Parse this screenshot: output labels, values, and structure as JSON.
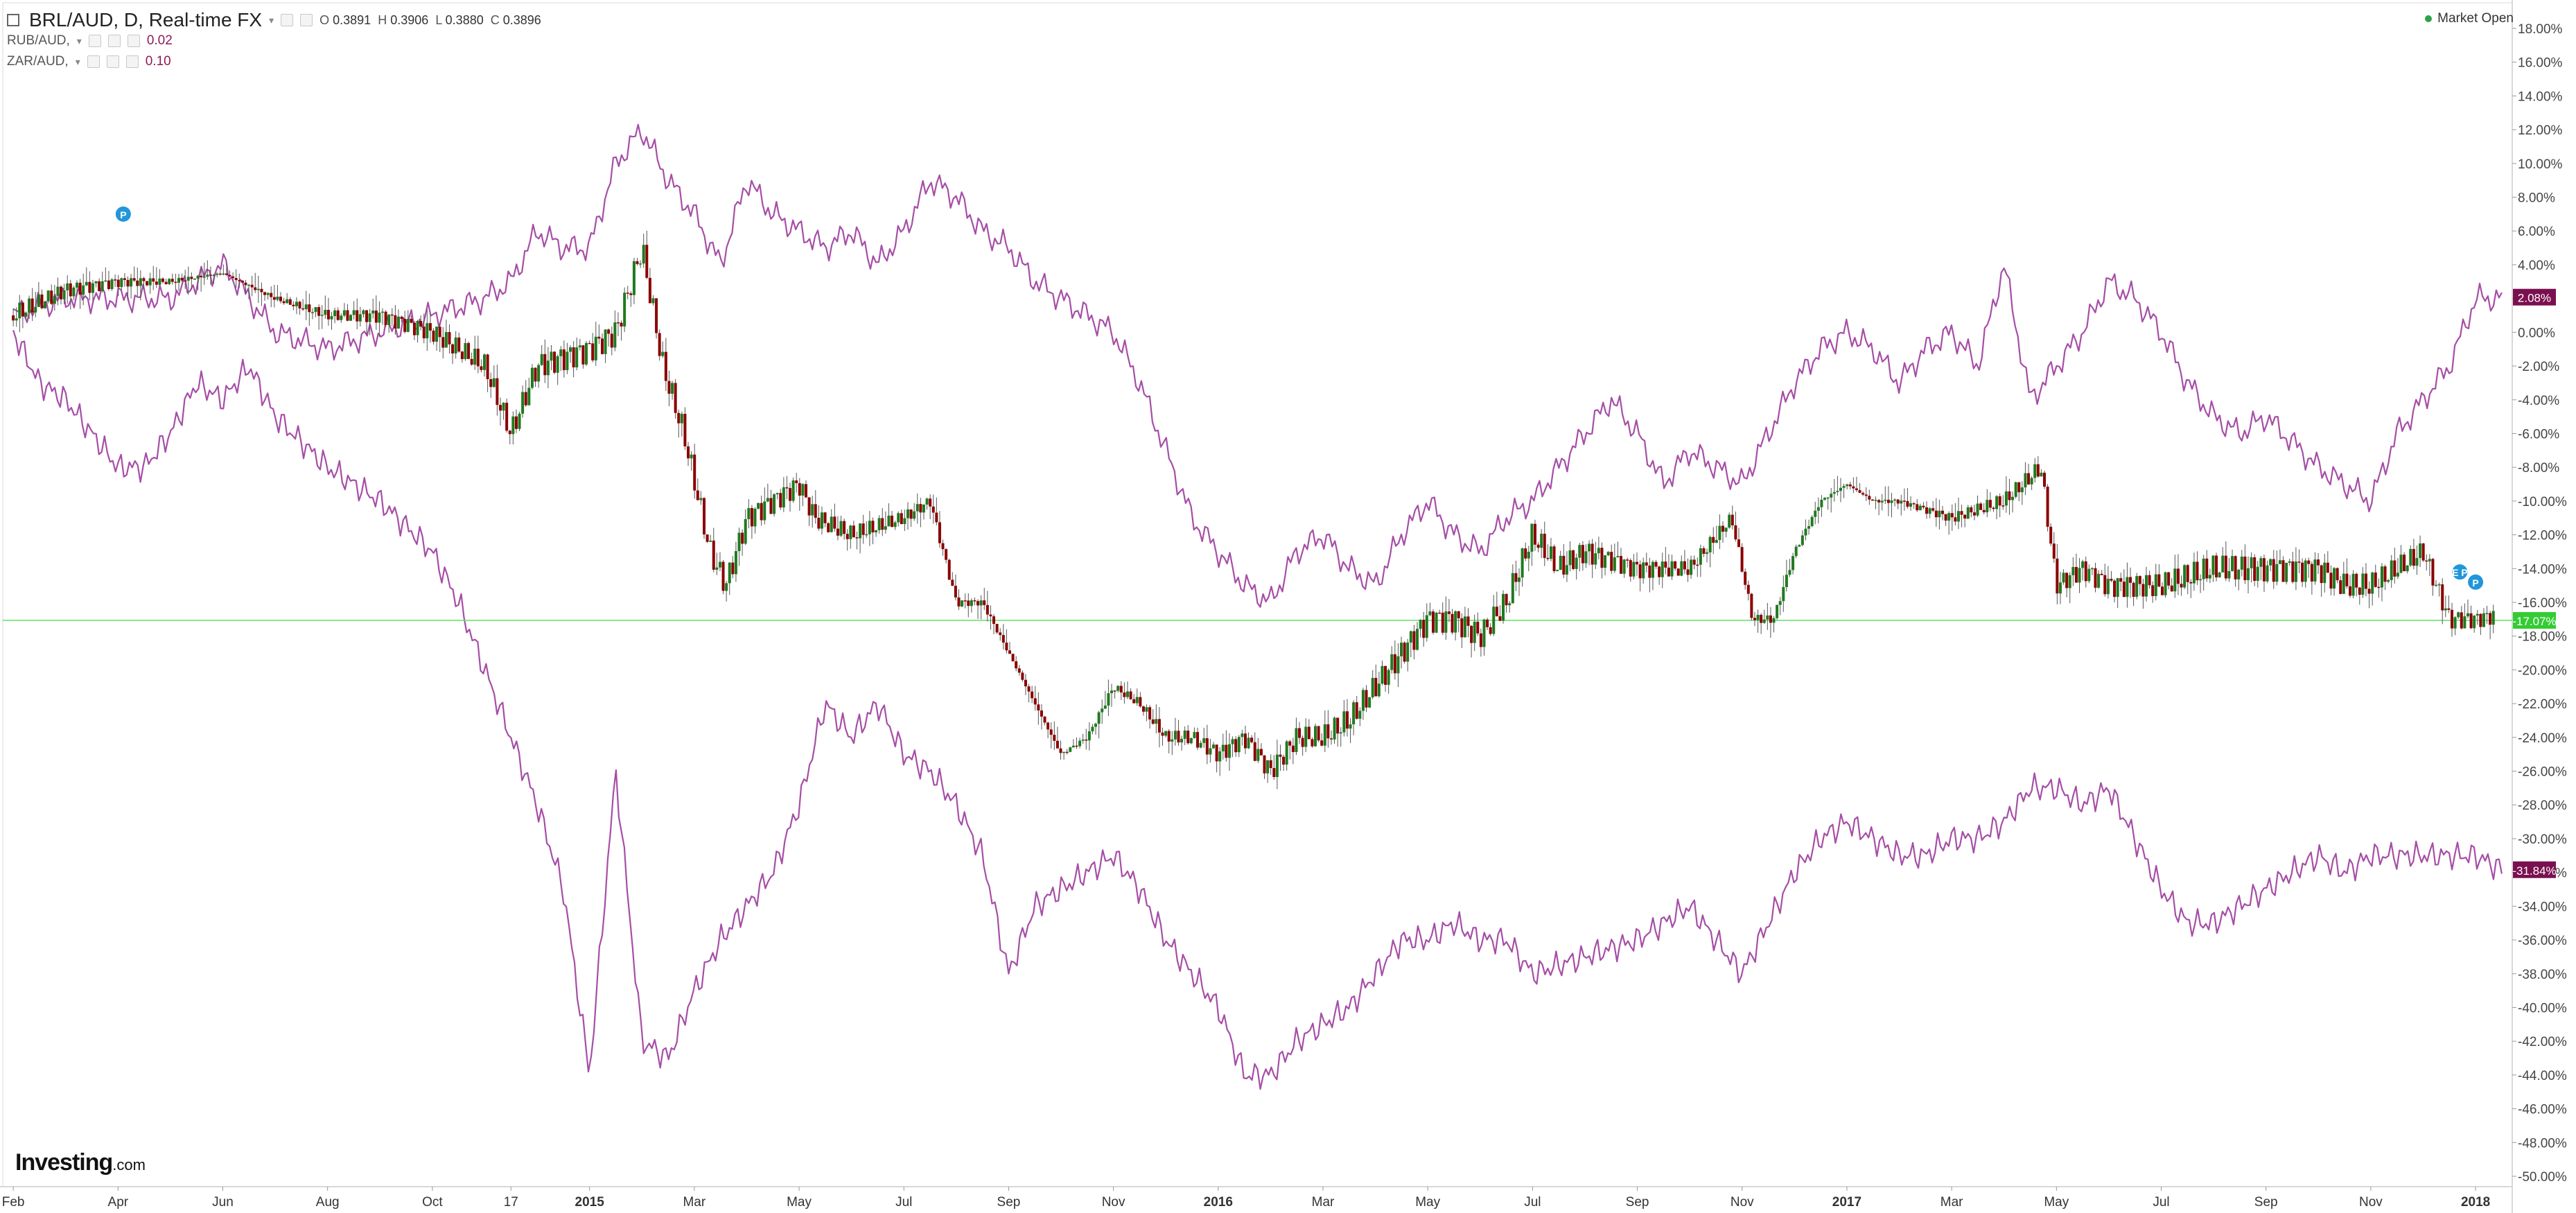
{
  "header": {
    "symbol_title": "BRL/AUD, D, Real-time FX",
    "ohlc": {
      "o_label": "O",
      "o": "0.3891",
      "h_label": "H",
      "h": "0.3906",
      "l_label": "L",
      "l": "0.3880",
      "c_label": "C",
      "c": "0.3896"
    },
    "compare": [
      {
        "label": "RUB/AUD,",
        "value": "0.02"
      },
      {
        "label": "ZAR/AUD,",
        "value": "0.10"
      }
    ],
    "market_status": "Market Open"
  },
  "brand": {
    "name": "Investing",
    "suffix": ".com"
  },
  "colors": {
    "up": "#1f7a1f",
    "down": "#8b0000",
    "compare_line": "#a64ea6",
    "current_line": "#66dd66",
    "badge_compare": "#7a1050",
    "badge_current": "#33cc33",
    "marker": "#2196d9"
  },
  "chart_data": {
    "type": "line",
    "y_axis": {
      "unit": "%",
      "min": -50,
      "max": 18,
      "step": 2,
      "labels_position": "right"
    },
    "x_ticks": [
      "Feb",
      "Apr",
      "Jun",
      "Aug",
      "Oct",
      "17",
      "2015",
      "Mar",
      "May",
      "Jul",
      "Sep",
      "Nov",
      "2016",
      "Mar",
      "May",
      "Jul",
      "Sep",
      "Nov",
      "2017",
      "Mar",
      "May",
      "Jul",
      "Sep",
      "Nov",
      "2018"
    ],
    "x_tick_time": [
      0,
      2,
      4,
      6,
      8,
      9.5,
      11,
      13,
      15,
      17,
      19,
      21,
      23,
      25,
      27,
      29,
      31,
      33,
      35,
      37,
      39,
      41,
      43,
      45,
      47
    ],
    "time_range": [
      -0.2,
      47.7
    ],
    "series": [
      {
        "name": "BRL/AUD",
        "kind": "candlestick",
        "points": [
          [
            0,
            1
          ],
          [
            1,
            2.5
          ],
          [
            2,
            3
          ],
          [
            3,
            3
          ],
          [
            4,
            3.5
          ],
          [
            5,
            2
          ],
          [
            6,
            1
          ],
          [
            7,
            1
          ],
          [
            8,
            0
          ],
          [
            9,
            -2
          ],
          [
            9.5,
            -6
          ],
          [
            10,
            -2
          ],
          [
            11,
            -1
          ],
          [
            11.5,
            0
          ],
          [
            12,
            5
          ],
          [
            12.4,
            -2
          ],
          [
            12.8,
            -6
          ],
          [
            13.3,
            -13
          ],
          [
            13.6,
            -15
          ],
          [
            14,
            -11
          ],
          [
            14.5,
            -10
          ],
          [
            15,
            -9
          ],
          [
            15.3,
            -11
          ],
          [
            16,
            -12
          ],
          [
            17,
            -11
          ],
          [
            17.5,
            -10
          ],
          [
            18,
            -16
          ],
          [
            18.5,
            -16
          ],
          [
            19,
            -19
          ],
          [
            19.5,
            -22
          ],
          [
            20,
            -25
          ],
          [
            20.5,
            -24
          ],
          [
            21,
            -21
          ],
          [
            21.5,
            -22
          ],
          [
            22,
            -24
          ],
          [
            22.5,
            -24
          ],
          [
            23,
            -25
          ],
          [
            23.5,
            -24
          ],
          [
            24,
            -26
          ],
          [
            24.5,
            -24
          ],
          [
            25,
            -24
          ],
          [
            25.5,
            -23
          ],
          [
            26,
            -21
          ],
          [
            26.5,
            -19
          ],
          [
            27,
            -17
          ],
          [
            27.5,
            -17
          ],
          [
            28,
            -18
          ],
          [
            28.5,
            -16
          ],
          [
            29,
            -12
          ],
          [
            29.5,
            -14
          ],
          [
            30,
            -13
          ],
          [
            31,
            -14
          ],
          [
            32,
            -14
          ],
          [
            32.8,
            -11
          ],
          [
            33.2,
            -17
          ],
          [
            33.6,
            -17
          ],
          [
            34,
            -13
          ],
          [
            34.5,
            -10
          ],
          [
            35,
            -9
          ],
          [
            35.5,
            -10
          ],
          [
            36,
            -10
          ],
          [
            37,
            -11
          ],
          [
            38,
            -10
          ],
          [
            38.7,
            -8
          ],
          [
            39,
            -15
          ],
          [
            39.5,
            -14
          ],
          [
            40,
            -15
          ],
          [
            41,
            -15
          ],
          [
            42,
            -14
          ],
          [
            43,
            -14
          ],
          [
            44,
            -14
          ],
          [
            44.5,
            -15
          ],
          [
            45,
            -15
          ],
          [
            45.5,
            -14
          ],
          [
            46,
            -13
          ],
          [
            46.5,
            -17
          ],
          [
            47,
            -17
          ],
          [
            47.5,
            -16.7
          ]
        ],
        "current": -17.07,
        "current_label": "-17.07%"
      },
      {
        "name": "RUB/AUD",
        "kind": "line",
        "points": [
          [
            0,
            1
          ],
          [
            1,
            2
          ],
          [
            2,
            2
          ],
          [
            3,
            2
          ],
          [
            4,
            4
          ],
          [
            5,
            0
          ],
          [
            6,
            -1
          ],
          [
            7,
            0
          ],
          [
            8,
            1
          ],
          [
            9,
            2
          ],
          [
            9.5,
            3
          ],
          [
            10,
            6
          ],
          [
            10.5,
            5
          ],
          [
            11,
            5
          ],
          [
            11.5,
            10
          ],
          [
            12,
            12
          ],
          [
            12.5,
            9
          ],
          [
            13,
            7
          ],
          [
            13.5,
            4
          ],
          [
            14,
            9
          ],
          [
            14.5,
            7
          ],
          [
            15,
            6
          ],
          [
            15.5,
            5
          ],
          [
            16,
            6
          ],
          [
            16.5,
            4
          ],
          [
            17,
            6
          ],
          [
            17.5,
            9
          ],
          [
            18,
            8
          ],
          [
            18.5,
            6
          ],
          [
            19,
            5
          ],
          [
            19.5,
            3
          ],
          [
            20,
            2
          ],
          [
            21,
            0
          ],
          [
            21.5,
            -3
          ],
          [
            22,
            -7
          ],
          [
            22.5,
            -11
          ],
          [
            23,
            -13
          ],
          [
            23.5,
            -15
          ],
          [
            24,
            -16
          ],
          [
            24.5,
            -13
          ],
          [
            25,
            -12
          ],
          [
            25.5,
            -14
          ],
          [
            26,
            -15
          ],
          [
            26.5,
            -12
          ],
          [
            27,
            -10
          ],
          [
            27.5,
            -12
          ],
          [
            28,
            -13
          ],
          [
            28.5,
            -11
          ],
          [
            29,
            -10
          ],
          [
            29.5,
            -8
          ],
          [
            30,
            -6
          ],
          [
            30.5,
            -4
          ],
          [
            31,
            -6
          ],
          [
            31.5,
            -9
          ],
          [
            32,
            -7
          ],
          [
            33,
            -9
          ],
          [
            33.5,
            -6
          ],
          [
            34,
            -3
          ],
          [
            34.5,
            -1
          ],
          [
            35,
            0
          ],
          [
            35.5,
            -1
          ],
          [
            36,
            -3
          ],
          [
            36.5,
            -1
          ],
          [
            37,
            0
          ],
          [
            37.5,
            -2
          ],
          [
            38,
            4
          ],
          [
            38.5,
            -4
          ],
          [
            39,
            -2
          ],
          [
            39.5,
            0
          ],
          [
            40,
            3
          ],
          [
            40.5,
            2
          ],
          [
            41,
            0
          ],
          [
            41.5,
            -3
          ],
          [
            42,
            -5
          ],
          [
            42.5,
            -6
          ],
          [
            43,
            -5
          ],
          [
            44,
            -8
          ],
          [
            44.5,
            -9
          ],
          [
            45,
            -10
          ],
          [
            45.5,
            -6
          ],
          [
            46,
            -4
          ],
          [
            46.5,
            -2
          ],
          [
            47,
            2
          ],
          [
            47.5,
            2
          ]
        ],
        "current": 2.08,
        "current_label": "2.08%"
      },
      {
        "name": "ZAR/AUD",
        "kind": "line",
        "points": [
          [
            0,
            0
          ],
          [
            0.5,
            -3
          ],
          [
            1,
            -4
          ],
          [
            2,
            -8
          ],
          [
            2.5,
            -8
          ],
          [
            3,
            -6
          ],
          [
            3.5,
            -3
          ],
          [
            4,
            -4
          ],
          [
            4.5,
            -2
          ],
          [
            5,
            -5
          ],
          [
            6,
            -8
          ],
          [
            7,
            -10
          ],
          [
            8,
            -13
          ],
          [
            8.5,
            -16
          ],
          [
            9,
            -20
          ],
          [
            9.5,
            -24
          ],
          [
            10,
            -28
          ],
          [
            10.5,
            -33
          ],
          [
            11,
            -44
          ],
          [
            11.5,
            -26
          ],
          [
            12,
            -42
          ],
          [
            12.5,
            -43
          ],
          [
            13,
            -39
          ],
          [
            13.5,
            -36
          ],
          [
            14,
            -34
          ],
          [
            14.5,
            -32
          ],
          [
            15,
            -28
          ],
          [
            15.5,
            -22
          ],
          [
            16,
            -24
          ],
          [
            16.5,
            -22
          ],
          [
            17,
            -25
          ],
          [
            17.5,
            -26
          ],
          [
            18,
            -28
          ],
          [
            18.5,
            -31
          ],
          [
            19,
            -38
          ],
          [
            19.5,
            -34
          ],
          [
            20,
            -33
          ],
          [
            21,
            -31
          ],
          [
            21.5,
            -33
          ],
          [
            22,
            -36
          ],
          [
            22.5,
            -38
          ],
          [
            23,
            -40
          ],
          [
            23.5,
            -44
          ],
          [
            24,
            -44
          ],
          [
            24.5,
            -42
          ],
          [
            25,
            -41
          ],
          [
            25.5,
            -40
          ],
          [
            26,
            -38
          ],
          [
            26.5,
            -36
          ],
          [
            27,
            -36
          ],
          [
            27.5,
            -35
          ],
          [
            28,
            -36
          ],
          [
            28.5,
            -36
          ],
          [
            29,
            -38
          ],
          [
            30,
            -37
          ],
          [
            31,
            -36
          ],
          [
            31.5,
            -35
          ],
          [
            32,
            -34
          ],
          [
            32.5,
            -36
          ],
          [
            33,
            -38
          ],
          [
            33.5,
            -35
          ],
          [
            34,
            -32
          ],
          [
            34.5,
            -30
          ],
          [
            35,
            -29
          ],
          [
            35.5,
            -30
          ],
          [
            36,
            -31
          ],
          [
            36.5,
            -31
          ],
          [
            37,
            -30
          ],
          [
            37.5,
            -30
          ],
          [
            38,
            -29
          ],
          [
            38.5,
            -27
          ],
          [
            39,
            -27
          ],
          [
            39.5,
            -28
          ],
          [
            40,
            -27
          ],
          [
            40.5,
            -30
          ],
          [
            41,
            -33
          ],
          [
            41.5,
            -35
          ],
          [
            42,
            -35
          ],
          [
            42.5,
            -34
          ],
          [
            43,
            -33
          ],
          [
            43.5,
            -32
          ],
          [
            44,
            -31
          ],
          [
            44.5,
            -32
          ],
          [
            45,
            -31
          ],
          [
            45.5,
            -31
          ],
          [
            46,
            -31
          ],
          [
            46.5,
            -31
          ],
          [
            47,
            -31
          ],
          [
            47.5,
            -31.84
          ]
        ],
        "current": -31.84,
        "current_label": "-31.84%"
      }
    ],
    "event_markers": [
      {
        "t": 2.1,
        "y": 7,
        "label": "P"
      },
      {
        "t": 46.7,
        "y": -14.2,
        "label": "E P"
      },
      {
        "t": 47.0,
        "y": -14.8,
        "label": "P"
      }
    ]
  }
}
